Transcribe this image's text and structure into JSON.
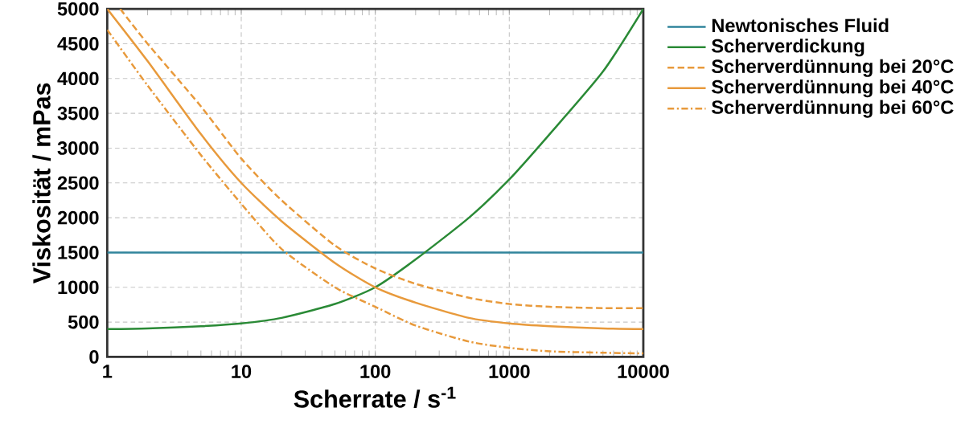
{
  "chart_data": {
    "type": "line",
    "xlabel": "Scherrate / s$^{-1}$",
    "ylabel": "Viskosität / mPas",
    "log": "x",
    "grid": true,
    "legend": "top right",
    "xlim": [
      1,
      10000
    ],
    "ylim": [
      0,
      5000
    ],
    "xticks": [
      1,
      10,
      100,
      1000,
      10000
    ],
    "yticks": [
      0,
      500,
      1000,
      1500,
      2000,
      2500,
      3000,
      3500,
      4000,
      4500,
      5000
    ],
    "series": [
      {
        "name": "Newtonisches Fluid",
        "color": "#31859c",
        "line_style": "solid",
        "x": [
          1,
          10000
        ],
        "values": [
          1500,
          1500
        ]
      },
      {
        "name": "Scherverdickung",
        "color": "#2a8a36",
        "line_style": "solid",
        "x": [
          1,
          2,
          5,
          10,
          20,
          50,
          100,
          200,
          500,
          1000,
          2000,
          5000,
          10000
        ],
        "values": [
          400,
          410,
          440,
          480,
          560,
          760,
          1000,
          1400,
          2000,
          2550,
          3200,
          4100,
          5000
        ]
      },
      {
        "name": "Scherverdünnung bei 20°C",
        "color": "#e89a3c",
        "line_style": "dashed",
        "x": [
          1.25,
          2,
          5,
          10,
          20,
          50,
          100,
          200,
          500,
          1000,
          2000,
          5000,
          10000
        ],
        "values": [
          5000,
          4500,
          3600,
          2850,
          2250,
          1600,
          1270,
          1050,
          850,
          760,
          720,
          700,
          700
        ]
      },
      {
        "name": "Scherverdünnung bei 40°C",
        "color": "#e89a3c",
        "line_style": "solid",
        "x": [
          1,
          2,
          5,
          10,
          20,
          50,
          100,
          200,
          500,
          1000,
          2000,
          5000,
          10000
        ],
        "values": [
          5000,
          4250,
          3200,
          2500,
          1950,
          1350,
          1000,
          780,
          560,
          480,
          440,
          410,
          400
        ]
      },
      {
        "name": "Scherverdünnung bei 60°C",
        "color": "#e89a3c",
        "line_style": "dashdot",
        "x": [
          1,
          2,
          5,
          10,
          20,
          50,
          100,
          200,
          500,
          1000,
          2000,
          5000,
          10000
        ],
        "values": [
          4700,
          3900,
          2900,
          2200,
          1550,
          1000,
          720,
          450,
          220,
          130,
          80,
          60,
          50
        ]
      }
    ]
  }
}
